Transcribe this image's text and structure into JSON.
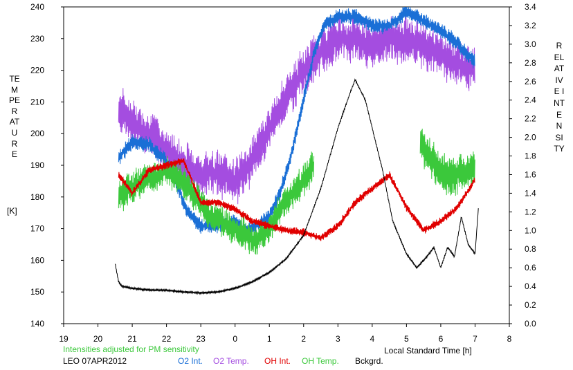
{
  "chart_data": {
    "type": "line",
    "left_axis": {
      "label": "TEMPERATURE",
      "unit": "[K]",
      "ylim": [
        140,
        240
      ],
      "ticks": [
        140,
        150,
        160,
        170,
        180,
        190,
        200,
        210,
        220,
        230,
        240
      ]
    },
    "right_axis": {
      "label": "RELATIVE INTENSITY",
      "ylim": [
        0,
        3.4
      ],
      "ticks": [
        "0.0",
        "0.2",
        "0.4",
        "0.6",
        "0.8",
        "1.0",
        "1.2",
        "1.4",
        "1.6",
        "1.8",
        "2.0",
        "2.2",
        "2.4",
        "2.6",
        "2.8",
        "3.0",
        "3.2",
        "3.4"
      ]
    },
    "x_axis": {
      "label": "Local Standard Time [h]",
      "xlim": [
        19,
        32
      ],
      "ticks": [
        19,
        20,
        21,
        22,
        23,
        24,
        25,
        26,
        27,
        28,
        29,
        30,
        31,
        32
      ],
      "tick_labels": [
        "19",
        "20",
        "21",
        "22",
        "23",
        "0",
        "1",
        "2",
        "3",
        "4",
        "5",
        "6",
        "7",
        "8"
      ]
    },
    "note": "Intensities adjusted for PM sensitivity",
    "station": "LEO 07APR2012",
    "legend": [
      {
        "name": "O2 Int.",
        "color": "#1a6fd6"
      },
      {
        "name": "O2 Temp.",
        "color": "#a44de0"
      },
      {
        "name": "OH Int.",
        "color": "#e00000"
      },
      {
        "name": "OH Temp.",
        "color": "#3bc83b"
      },
      {
        "name": "Bckgrd.",
        "color": "#000000"
      }
    ],
    "series": [
      {
        "name": "O2 Temp.",
        "axis": "left",
        "color": "#a44de0",
        "noise": 7,
        "x": [
          20.6,
          21,
          21.5,
          22,
          22.5,
          23,
          23.5,
          24,
          24.4,
          24.8,
          25.2,
          25.6,
          26,
          26.5,
          27,
          27.5,
          28,
          28.5,
          29,
          29.5,
          30,
          30.5,
          31
        ],
        "y": [
          208,
          203,
          200,
          195,
          190,
          187,
          188,
          185,
          190,
          198,
          206,
          213,
          220,
          226,
          230,
          230,
          228,
          230,
          230,
          228,
          225,
          222,
          220
        ]
      },
      {
        "name": "O2 Int.",
        "axis": "right",
        "color": "#1a6fd6",
        "noise": 0.08,
        "x": [
          20.6,
          21,
          21.5,
          22,
          22.3,
          22.6,
          23,
          23.5,
          24,
          24.3,
          24.6,
          25,
          25.3,
          25.6,
          26,
          26.3,
          26.6,
          27,
          27.5,
          28,
          28.5,
          29,
          29.5,
          30,
          30.5,
          31
        ],
        "y": [
          1.78,
          1.95,
          1.92,
          1.75,
          1.5,
          1.2,
          1.05,
          1.05,
          1.1,
          1.0,
          1.05,
          1.15,
          1.4,
          1.75,
          2.4,
          2.9,
          3.2,
          3.3,
          3.3,
          3.2,
          3.2,
          3.35,
          3.25,
          3.15,
          3.0,
          2.8
        ]
      },
      {
        "name": "OH Temp.",
        "axis": "left",
        "color": "#3bc83b",
        "noise": 5,
        "x": [
          20.6,
          21,
          21.5,
          22,
          22.5,
          23,
          23.3,
          23.6,
          24,
          24.3,
          24.6,
          25,
          25.3,
          25.6,
          26,
          26.3
        ],
        "y": [
          180,
          183,
          186,
          188,
          185,
          178,
          174,
          172,
          170,
          168,
          166,
          170,
          176,
          180,
          185,
          190
        ]
      },
      {
        "name": "OH Temp.",
        "axis": "left",
        "color": "#3bc83b",
        "noise": 6,
        "x": [
          29.4,
          29.7,
          30,
          30.3,
          30.6,
          31
        ],
        "y": [
          198,
          192,
          188,
          186,
          188,
          190
        ]
      },
      {
        "name": "OH Int.",
        "axis": "right",
        "color": "#e00000",
        "noise": 0.04,
        "x": [
          20.6,
          21,
          21.5,
          22,
          22.5,
          23,
          23.5,
          24,
          24.5,
          25,
          25.5,
          26,
          26.5,
          27,
          27.5,
          28,
          28.5,
          29,
          29.5,
          30,
          30.5,
          31
        ],
        "y": [
          1.6,
          1.4,
          1.65,
          1.7,
          1.75,
          1.3,
          1.3,
          1.23,
          1.1,
          1.05,
          1.0,
          0.98,
          0.92,
          1.05,
          1.3,
          1.45,
          1.6,
          1.25,
          1.0,
          1.1,
          1.25,
          1.55
        ]
      },
      {
        "name": "Bckgrd.",
        "axis": "right",
        "color": "#000000",
        "noise": 0.01,
        "x": [
          20.5,
          20.6,
          20.7,
          21,
          21.5,
          22,
          22.5,
          23,
          23.5,
          24,
          24.3,
          24.5,
          25,
          25.5,
          26,
          26.5,
          27,
          27.3,
          27.5,
          27.8,
          28,
          28.3,
          28.6,
          29,
          29.3,
          29.6,
          29.8,
          30,
          30.2,
          30.4,
          30.6,
          30.8,
          31,
          31.1
        ],
        "y": [
          0.65,
          0.45,
          0.4,
          0.38,
          0.36,
          0.36,
          0.34,
          0.33,
          0.34,
          0.38,
          0.42,
          0.45,
          0.55,
          0.7,
          0.95,
          1.45,
          2.1,
          2.42,
          2.62,
          2.4,
          2.1,
          1.65,
          1.1,
          0.75,
          0.6,
          0.72,
          0.82,
          0.6,
          0.82,
          0.72,
          1.15,
          0.85,
          0.75,
          1.25
        ]
      }
    ]
  }
}
